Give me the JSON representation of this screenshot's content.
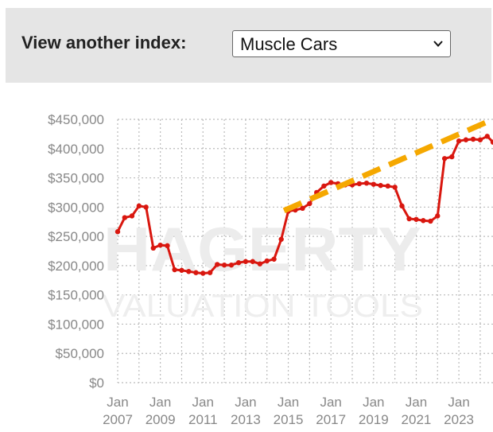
{
  "header": {
    "label": "View another index:",
    "select_value": "Muscle Cars"
  },
  "watermark": {
    "brand": "HAGERTY",
    "tagline": "VALUATION TOOLS"
  },
  "colors": {
    "panel_bg": "#e5e5e5",
    "series": "#d9170f",
    "trend": "#f5a800",
    "grid": "#bbbbbb",
    "axis_text": "#888888"
  },
  "chart_data": {
    "type": "line",
    "grid": true,
    "ylim": [
      0,
      450000
    ],
    "xlim": [
      2007,
      2024.6
    ],
    "y_ticks": [
      {
        "value": 0,
        "label": "$0"
      },
      {
        "value": 50000,
        "label": "$50,000"
      },
      {
        "value": 100000,
        "label": "$100,000"
      },
      {
        "value": 150000,
        "label": "$150,000"
      },
      {
        "value": 200000,
        "label": "$200,000"
      },
      {
        "value": 250000,
        "label": "$250,000"
      },
      {
        "value": 300000,
        "label": "$300,000"
      },
      {
        "value": 350000,
        "label": "$350,000"
      },
      {
        "value": 400000,
        "label": "$400,000"
      },
      {
        "value": 450000,
        "label": "$450,000"
      }
    ],
    "x_ticks": [
      {
        "value": 2007,
        "line1": "Jan",
        "line2": "2007"
      },
      {
        "value": 2009,
        "line1": "Jan",
        "line2": "2009"
      },
      {
        "value": 2011,
        "line1": "Jan",
        "line2": "2011"
      },
      {
        "value": 2013,
        "line1": "Jan",
        "line2": "2013"
      },
      {
        "value": 2015,
        "line1": "Jan",
        "line2": "2015"
      },
      {
        "value": 2017,
        "line1": "Jan",
        "line2": "2017"
      },
      {
        "value": 2019,
        "line1": "Jan",
        "line2": "2019"
      },
      {
        "value": 2021,
        "line1": "Jan",
        "line2": "2021"
      },
      {
        "value": 2023,
        "line1": "Jan",
        "line2": "2023"
      }
    ],
    "series": [
      {
        "x": [
          2007.0,
          2007.33,
          2007.67,
          2008.0,
          2008.33,
          2008.67,
          2009.0,
          2009.33,
          2009.67,
          2010.0,
          2010.33,
          2010.67,
          2011.0,
          2011.33,
          2011.67,
          2012.0,
          2012.33,
          2012.67,
          2013.0,
          2013.33,
          2013.67,
          2014.0,
          2014.33,
          2014.67,
          2015.0,
          2015.33,
          2015.67,
          2016.0,
          2016.33,
          2016.67,
          2017.0,
          2017.33,
          2017.67,
          2018.0,
          2018.33,
          2018.67,
          2019.0,
          2019.33,
          2019.67,
          2020.0,
          2020.33,
          2020.67,
          2021.0,
          2021.33,
          2021.67,
          2022.0,
          2022.33,
          2022.67,
          2023.0,
          2023.33,
          2023.67,
          2024.0,
          2024.33,
          2024.6
        ],
        "y": [
          258000,
          282000,
          285000,
          302000,
          300000,
          230000,
          235000,
          234000,
          193000,
          192000,
          190000,
          188000,
          187000,
          188000,
          202000,
          201000,
          201000,
          205000,
          207000,
          207000,
          203000,
          208000,
          211000,
          245000,
          293000,
          295000,
          298000,
          306000,
          325000,
          336000,
          342000,
          340000,
          338000,
          338000,
          340000,
          341000,
          339000,
          337000,
          336000,
          334000,
          302000,
          280000,
          279000,
          277000,
          276000,
          285000,
          383000,
          386000,
          413000,
          415000,
          416000,
          415000,
          421000,
          411000
        ]
      }
    ],
    "trend_line": {
      "x": [
        2014.8,
        2024.6
      ],
      "y": [
        294000,
        450000
      ]
    }
  }
}
